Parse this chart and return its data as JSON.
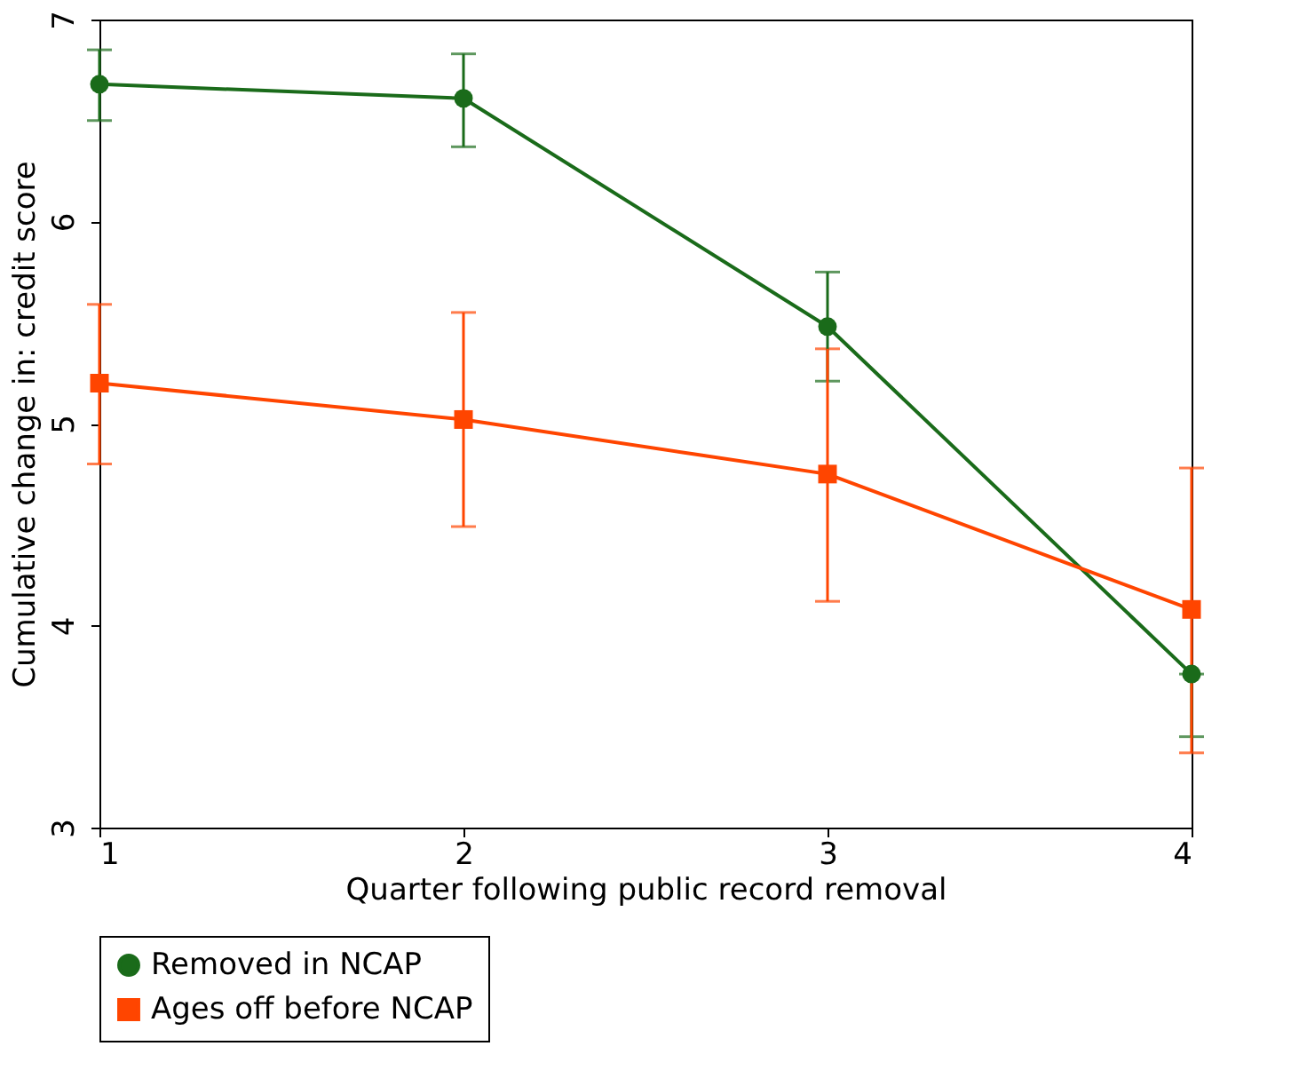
{
  "chart_data": {
    "type": "line",
    "xlabel": "Quarter following public record removal",
    "ylabel": "Cumulative change in: credit score",
    "x": [
      1,
      2,
      3,
      4
    ],
    "xlim": [
      1,
      4
    ],
    "xticks": [
      1,
      2,
      3,
      4
    ],
    "ylim": [
      3,
      7
    ],
    "yticks": [
      3,
      4,
      5,
      6,
      7
    ],
    "grid": false,
    "legend": "bottom",
    "line_style": "solid",
    "series": [
      {
        "name": "Removed in NCAP",
        "color": "#1a6b1a",
        "marker": "circle",
        "values": [
          6.68,
          6.61,
          5.48,
          3.76
        ],
        "errors": [
          [
            6.5,
            6.85
          ],
          [
            6.37,
            6.83
          ],
          [
            5.21,
            5.75
          ],
          [
            3.45,
            3.76
          ]
        ]
      },
      {
        "name": "Ages off before NCAP",
        "color": "#ff4500",
        "marker": "square",
        "values": [
          5.2,
          5.02,
          4.75,
          4.08
        ],
        "errors": [
          [
            4.8,
            5.59
          ],
          [
            4.49,
            5.55
          ],
          [
            4.12,
            5.37
          ],
          [
            3.37,
            4.78
          ]
        ]
      }
    ]
  }
}
